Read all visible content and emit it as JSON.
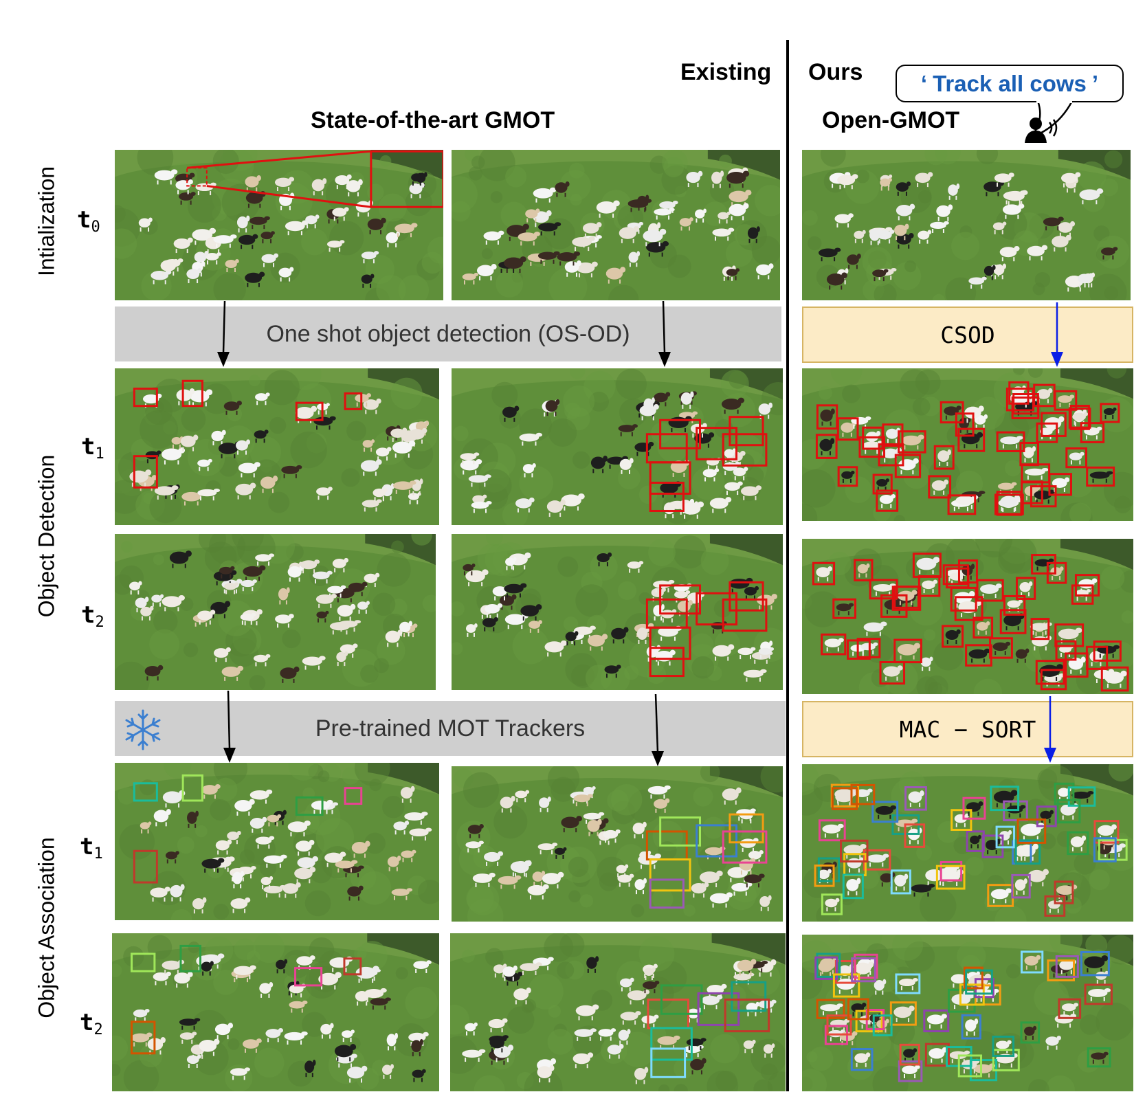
{
  "header": {
    "existing": "Existing",
    "ours": "Ours",
    "sota": "State-of-the-art GMOT",
    "open_gmot": "Open-GMOT",
    "prompt_open": "‘",
    "prompt": "Track all cows",
    "prompt_close": "’"
  },
  "rows": {
    "init": "Intialization",
    "detection": "Object Detection",
    "association": "Object Association"
  },
  "time_labels": {
    "t0": "t",
    "t0_sub": "0",
    "t1": "t",
    "t1_sub": "1",
    "t2": "t",
    "t2_sub": "2"
  },
  "bands": {
    "osod": "One shot object detection (OS-OD)",
    "mot": "Pre-trained MOT Trackers",
    "csod": "CSOD",
    "mac_sort": "MAC − SORT"
  },
  "colors": {
    "grass": "#5f8f3a",
    "detect_box": "#e01010",
    "arrow_black": "#000000",
    "arrow_blue": "#0a1ee6",
    "gray_band": "#cfcfcf",
    "yellow_band": "#fcebc6",
    "prompt_text": "#1a5fb4"
  },
  "icons": [
    "snowflake-icon",
    "speaker-icon"
  ]
}
